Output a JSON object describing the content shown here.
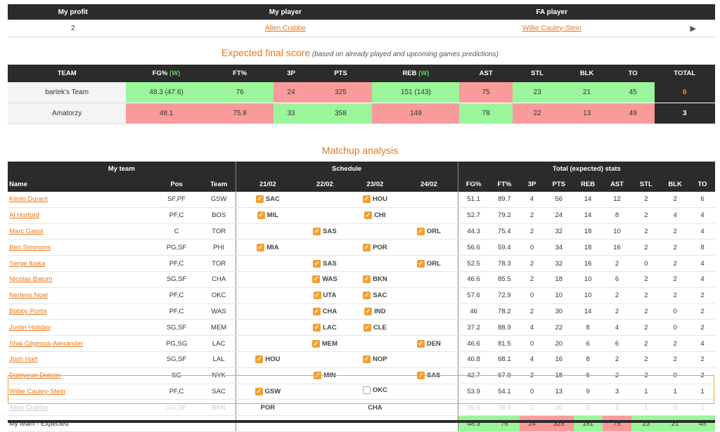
{
  "profit_table": {
    "headers": [
      "My profit",
      "My player",
      "FA player"
    ],
    "profit": "2",
    "my_player": "Allen Crabbe",
    "fa_player": "Willie Cauley-Stein",
    "play_icon": "▶"
  },
  "expected": {
    "title": "Expected final score",
    "subtitle": "(based on already played and upcoming games predictions)",
    "headers": [
      "TEAM",
      "FG%",
      "FT%",
      "3P",
      "PTS",
      "REB",
      "AST",
      "STL",
      "BLK",
      "TO",
      "TOTAL"
    ],
    "w_marker": "(W)",
    "rows": [
      {
        "team": "bartek's Team",
        "values": [
          "48.3 (47.6)",
          "76",
          "24",
          "325",
          "151 (143)",
          "75",
          "23",
          "21",
          "45"
        ],
        "colors": [
          "g",
          "g",
          "r",
          "r",
          "g",
          "r",
          "g",
          "g",
          "g"
        ],
        "total": "6"
      },
      {
        "team": "Amatorzy",
        "values": [
          "48.1",
          "75.8",
          "33",
          "358",
          "149",
          "78",
          "22",
          "13",
          "49"
        ],
        "colors": [
          "r",
          "r",
          "g",
          "g",
          "r",
          "g",
          "r",
          "r",
          "r"
        ],
        "total": "3"
      }
    ]
  },
  "matchup": {
    "title": "Matchup analysis",
    "group_headers": [
      "My team",
      "Schedule",
      "Total (expected) stats"
    ],
    "col_headers": [
      "Name",
      "Pos",
      "Team",
      "21/02",
      "22/02",
      "23/02",
      "24/02",
      "FG%",
      "FT%",
      "3P",
      "PTS",
      "REB",
      "AST",
      "STL",
      "BLK",
      "TO"
    ],
    "players": [
      {
        "name": "Kevin Durant",
        "pos": "SF,PF",
        "team": "GSW",
        "sched": [
          "SAC",
          "",
          "HOU",
          ""
        ],
        "stats": [
          "51.1",
          "89.7",
          "4",
          "56",
          "14",
          "12",
          "2",
          "2",
          "6"
        ]
      },
      {
        "name": "Al Horford",
        "pos": "PF,C",
        "team": "BOS",
        "sched": [
          "MIL",
          "",
          "CHI",
          ""
        ],
        "stats": [
          "52.7",
          "79.2",
          "2",
          "24",
          "14",
          "8",
          "2",
          "4",
          "4"
        ]
      },
      {
        "name": "Marc Gasol",
        "pos": "C",
        "team": "TOR",
        "sched": [
          "",
          "SAS",
          "",
          "ORL"
        ],
        "stats": [
          "44.3",
          "75.4",
          "2",
          "32",
          "18",
          "10",
          "2",
          "2",
          "4"
        ]
      },
      {
        "name": "Ben Simmons",
        "pos": "PG,SF",
        "team": "PHI",
        "sched": [
          "MIA",
          "",
          "POR",
          ""
        ],
        "stats": [
          "56.6",
          "59.4",
          "0",
          "34",
          "18",
          "16",
          "2",
          "2",
          "8"
        ]
      },
      {
        "name": "Serge Ibaka",
        "pos": "PF,C",
        "team": "TOR",
        "sched": [
          "",
          "SAS",
          "",
          "ORL"
        ],
        "stats": [
          "52.5",
          "78.3",
          "2",
          "32",
          "16",
          "2",
          "0",
          "2",
          "4"
        ]
      },
      {
        "name": "Nicolas Batum",
        "pos": "SG,SF",
        "team": "CHA",
        "sched": [
          "",
          "WAS",
          "BKN",
          ""
        ],
        "stats": [
          "46.6",
          "85.5",
          "2",
          "18",
          "10",
          "6",
          "2",
          "2",
          "4"
        ]
      },
      {
        "name": "Nerlens Noel",
        "pos": "PF,C",
        "team": "OKC",
        "sched": [
          "",
          "UTA",
          "SAC",
          ""
        ],
        "stats": [
          "57.6",
          "72.9",
          "0",
          "10",
          "10",
          "2",
          "2",
          "2",
          "2"
        ]
      },
      {
        "name": "Bobby Portis",
        "pos": "PF,C",
        "team": "WAS",
        "sched": [
          "",
          "CHA",
          "IND",
          ""
        ],
        "stats": [
          "46",
          "78.2",
          "2",
          "30",
          "14",
          "2",
          "2",
          "0",
          "2"
        ]
      },
      {
        "name": "Justin Holiday",
        "pos": "SG,SF",
        "team": "MEM",
        "sched": [
          "",
          "LAC",
          "CLE",
          ""
        ],
        "stats": [
          "37.2",
          "88.9",
          "4",
          "22",
          "8",
          "4",
          "2",
          "0",
          "2"
        ]
      },
      {
        "name": "Shai Gilgeous-Alexander",
        "pos": "PG,SG",
        "team": "LAC",
        "sched": [
          "",
          "MEM",
          "",
          "DEN"
        ],
        "stats": [
          "46.6",
          "81.5",
          "0",
          "20",
          "6",
          "6",
          "2",
          "2",
          "4"
        ]
      },
      {
        "name": "Josh Hart",
        "pos": "SG,SF",
        "team": "LAL",
        "sched": [
          "HOU",
          "",
          "NOP",
          ""
        ],
        "stats": [
          "40.8",
          "68.1",
          "4",
          "16",
          "8",
          "2",
          "2",
          "2",
          "2"
        ]
      },
      {
        "name": "Damyean Dotson",
        "pos": "SG",
        "team": "NYK",
        "sched": [
          "",
          "MIN",
          "",
          "SAS"
        ],
        "stats": [
          "42.7",
          "67.9",
          "2",
          "18",
          "6",
          "2",
          "2",
          "0",
          "2"
        ]
      }
    ],
    "fa_player": {
      "name": "Willie Cauley-Stein",
      "pos": "PF,C",
      "team": "SAC",
      "sched": [
        "GSW",
        "",
        "OKC",
        ""
      ],
      "checked": [
        true,
        false,
        false,
        false
      ],
      "stats": [
        "53.9",
        "54.1",
        "0",
        "13",
        "9",
        "3",
        "1",
        "1",
        "1"
      ]
    },
    "dropped_player": {
      "name": "Allen Crabbe",
      "pos": "SG,SF",
      "team": "BKN",
      "sched": [
        "POR",
        "",
        "CHA",
        ""
      ],
      "stats": [
        "35.6",
        "78.9",
        "2",
        "10",
        "3",
        "1",
        "1",
        "0",
        "1"
      ]
    },
    "total_row": {
      "label": "My team - Expected",
      "stats": [
        "48.3",
        "76",
        "24",
        "325",
        "151",
        "75",
        "23",
        "21",
        "45"
      ],
      "colors": [
        "g",
        "g",
        "r",
        "r",
        "g",
        "r",
        "g",
        "g",
        "g"
      ]
    }
  },
  "colors": {
    "accent": "#e8761a",
    "header_bg": "#2b2b2b",
    "good": "#9bf59b",
    "bad": "#fa9b9b",
    "check": "#f0a030"
  }
}
